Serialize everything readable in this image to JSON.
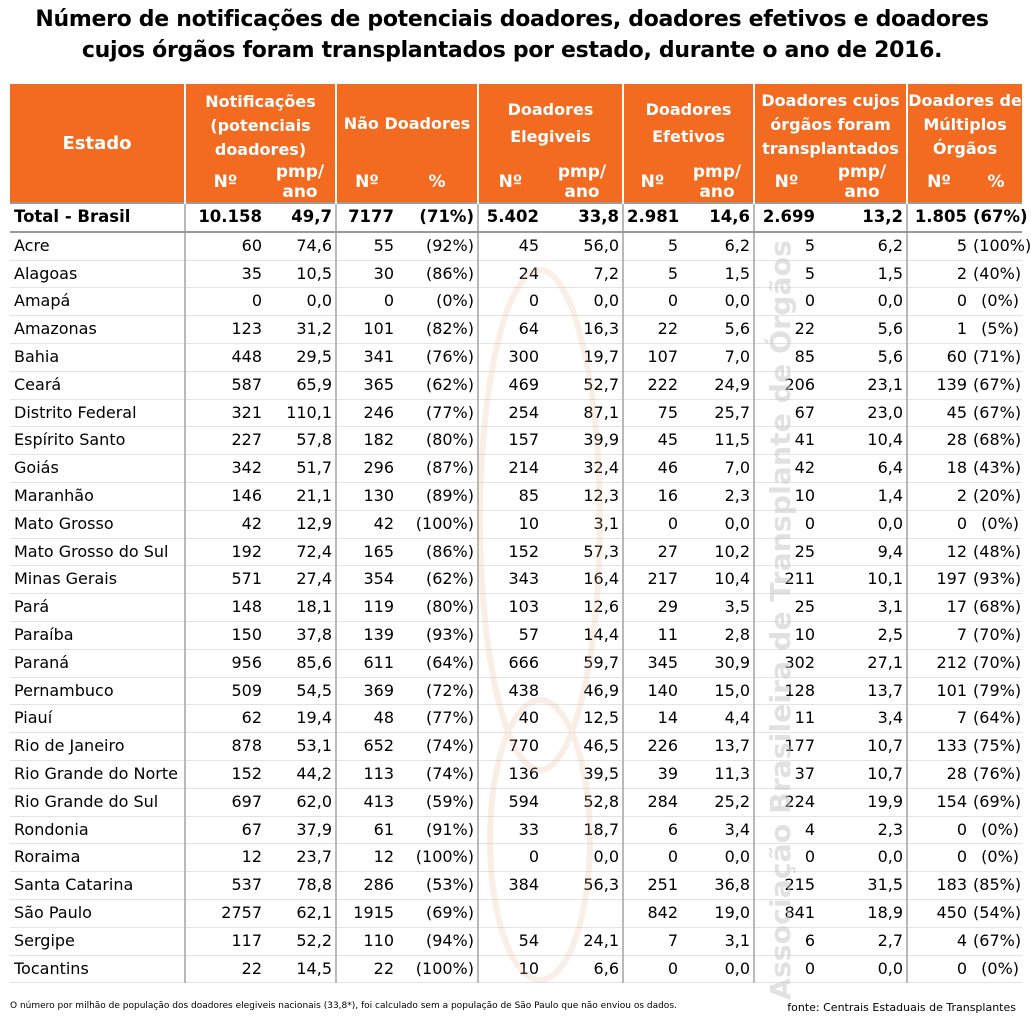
{
  "title_line1": "Número de notificações de potenciais doadores, doadores efetivos e doadores",
  "title_line2": "cujos órgãos foram transplantados por estado, durante o ano de 2016.",
  "watermark": "Associação Brasileira de Transplante de Órgãos",
  "headers": {
    "estado": "Estado",
    "notificacoes": "Notificações (potenciais doadores)",
    "nao_doadores": "Não Doadores",
    "elegiveis": "Doadores Elegiveis",
    "efetivos": "Doadores Efetivos",
    "transplantados": "Doadores cujos órgãos foram transplantados",
    "multiplos": "Doadores de Múltiplos Órgãos",
    "num": "Nº",
    "pmp": "pmp/ ano",
    "pct": "%"
  },
  "total": [
    "Total - Brasil",
    "10.158",
    "49,7",
    "7177",
    "(71%)",
    "5.402",
    "33,8",
    "2.981",
    "14,6",
    "2.699",
    "13,2",
    "1.805",
    "(67%)"
  ],
  "rows": [
    [
      "Acre",
      "60",
      "74,6",
      "55",
      "(92%)",
      "45",
      "56,0",
      "5",
      "6,2",
      "5",
      "6,2",
      "5",
      "(100%)"
    ],
    [
      "Alagoas",
      "35",
      "10,5",
      "30",
      "(86%)",
      "24",
      "7,2",
      "5",
      "1,5",
      "5",
      "1,5",
      "2",
      "(40%)"
    ],
    [
      "Amapá",
      "0",
      "0,0",
      "0",
      "(0%)",
      "0",
      "0,0",
      "0",
      "0,0",
      "0",
      "0,0",
      "0",
      "(0%)"
    ],
    [
      "Amazonas",
      "123",
      "31,2",
      "101",
      "(82%)",
      "64",
      "16,3",
      "22",
      "5,6",
      "22",
      "5,6",
      "1",
      "(5%)"
    ],
    [
      "Bahia",
      "448",
      "29,5",
      "341",
      "(76%)",
      "300",
      "19,7",
      "107",
      "7,0",
      "85",
      "5,6",
      "60",
      "(71%)"
    ],
    [
      "Ceará",
      "587",
      "65,9",
      "365",
      "(62%)",
      "469",
      "52,7",
      "222",
      "24,9",
      "206",
      "23,1",
      "139",
      "(67%)"
    ],
    [
      "Distrito Federal",
      "321",
      "110,1",
      "246",
      "(77%)",
      "254",
      "87,1",
      "75",
      "25,7",
      "67",
      "23,0",
      "45",
      "(67%)"
    ],
    [
      "Espírito Santo",
      "227",
      "57,8",
      "182",
      "(80%)",
      "157",
      "39,9",
      "45",
      "11,5",
      "41",
      "10,4",
      "28",
      "(68%)"
    ],
    [
      "Goiás",
      "342",
      "51,7",
      "296",
      "(87%)",
      "214",
      "32,4",
      "46",
      "7,0",
      "42",
      "6,4",
      "18",
      "(43%)"
    ],
    [
      "Maranhão",
      "146",
      "21,1",
      "130",
      "(89%)",
      "85",
      "12,3",
      "16",
      "2,3",
      "10",
      "1,4",
      "2",
      "(20%)"
    ],
    [
      "Mato Grosso",
      "42",
      "12,9",
      "42",
      "(100%)",
      "10",
      "3,1",
      "0",
      "0,0",
      "0",
      "0,0",
      "0",
      "(0%)"
    ],
    [
      "Mato Grosso do Sul",
      "192",
      "72,4",
      "165",
      "(86%)",
      "152",
      "57,3",
      "27",
      "10,2",
      "25",
      "9,4",
      "12",
      "(48%)"
    ],
    [
      "Minas Gerais",
      "571",
      "27,4",
      "354",
      "(62%)",
      "343",
      "16,4",
      "217",
      "10,4",
      "211",
      "10,1",
      "197",
      "(93%)"
    ],
    [
      "Pará",
      "148",
      "18,1",
      "119",
      "(80%)",
      "103",
      "12,6",
      "29",
      "3,5",
      "25",
      "3,1",
      "17",
      "(68%)"
    ],
    [
      "Paraíba",
      "150",
      "37,8",
      "139",
      "(93%)",
      "57",
      "14,4",
      "11",
      "2,8",
      "10",
      "2,5",
      "7",
      "(70%)"
    ],
    [
      "Paraná",
      "956",
      "85,6",
      "611",
      "(64%)",
      "666",
      "59,7",
      "345",
      "30,9",
      "302",
      "27,1",
      "212",
      "(70%)"
    ],
    [
      "Pernambuco",
      "509",
      "54,5",
      "369",
      "(72%)",
      "438",
      "46,9",
      "140",
      "15,0",
      "128",
      "13,7",
      "101",
      "(79%)"
    ],
    [
      "Piauí",
      "62",
      "19,4",
      "48",
      "(77%)",
      "40",
      "12,5",
      "14",
      "4,4",
      "11",
      "3,4",
      "7",
      "(64%)"
    ],
    [
      "Rio de Janeiro",
      "878",
      "53,1",
      "652",
      "(74%)",
      "770",
      "46,5",
      "226",
      "13,7",
      "177",
      "10,7",
      "133",
      "(75%)"
    ],
    [
      "Rio Grande do Norte",
      "152",
      "44,2",
      "113",
      "(74%)",
      "136",
      "39,5",
      "39",
      "11,3",
      "37",
      "10,7",
      "28",
      "(76%)"
    ],
    [
      "Rio Grande do Sul",
      "697",
      "62,0",
      "413",
      "(59%)",
      "594",
      "52,8",
      "284",
      "25,2",
      "224",
      "19,9",
      "154",
      "(69%)"
    ],
    [
      "Rondonia",
      "67",
      "37,9",
      "61",
      "(91%)",
      "33",
      "18,7",
      "6",
      "3,4",
      "4",
      "2,3",
      "0",
      "(0%)"
    ],
    [
      "Roraima",
      "12",
      "23,7",
      "12",
      "(100%)",
      "0",
      "0,0",
      "0",
      "0,0",
      "0",
      "0,0",
      "0",
      "(0%)"
    ],
    [
      "Santa Catarina",
      "537",
      "78,8",
      "286",
      "(53%)",
      "384",
      "56,3",
      "251",
      "36,8",
      "215",
      "31,5",
      "183",
      "(85%)"
    ],
    [
      "São Paulo",
      "2757",
      "62,1",
      "1915",
      "(69%)",
      "",
      "",
      "842",
      "19,0",
      "841",
      "18,9",
      "450",
      "(54%)"
    ],
    [
      "Sergipe",
      "117",
      "52,2",
      "110",
      "(94%)",
      "54",
      "24,1",
      "7",
      "3,1",
      "6",
      "2,7",
      "4",
      "(67%)"
    ],
    [
      "Tocantins",
      "22",
      "14,5",
      "22",
      "(100%)",
      "10",
      "6,6",
      "0",
      "0,0",
      "0",
      "0,0",
      "0",
      "(0%)"
    ]
  ],
  "footnote": "O número por milhão de população dos doadores elegiveis nacionais (33,8*), foi calculado sem a população de São Paulo que não enviou os dados.",
  "source": "fonte: Centrais Estaduais de Transplantes"
}
